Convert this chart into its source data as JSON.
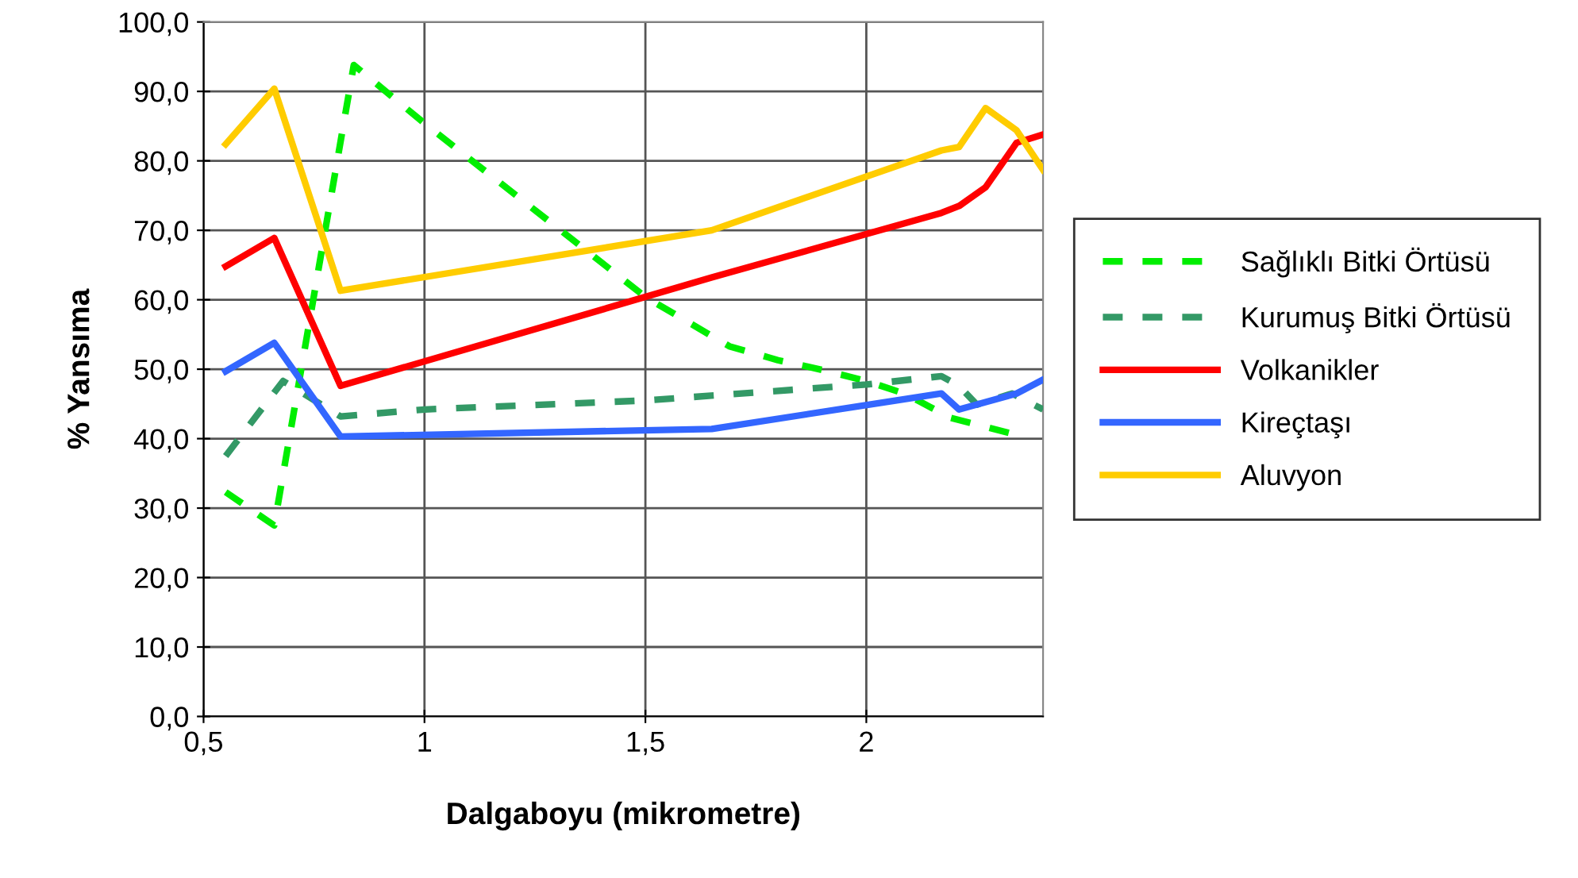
{
  "chart_data": {
    "type": "line",
    "xlabel": "Dalgaboyu (mikrometre)",
    "ylabel": "% Yansıma",
    "xlim": [
      0.5,
      2.4
    ],
    "ylim": [
      0,
      100
    ],
    "xticks": [
      {
        "value": 0.5,
        "label": "0,5"
      },
      1,
      {
        "value": 1.5,
        "label": "1,5"
      },
      2
    ],
    "yticks": [
      {
        "value": 0,
        "label": "0,0"
      },
      {
        "value": 10,
        "label": "10,0"
      },
      {
        "value": 20,
        "label": "20,0"
      },
      {
        "value": 30,
        "label": "30,0"
      },
      {
        "value": 40,
        "label": "40,0"
      },
      {
        "value": 50,
        "label": "50,0"
      },
      {
        "value": 60,
        "label": "60,0"
      },
      {
        "value": 70,
        "label": "70,0"
      },
      {
        "value": 80,
        "label": "80,0"
      },
      {
        "value": 90,
        "label": "90,0"
      },
      {
        "value": 100,
        "label": "100,0"
      }
    ],
    "grid": true,
    "legend": "right",
    "marker": "none",
    "series": [
      {
        "name": "Sağlıklı Bitki Örtüsü",
        "color": "#00ee00",
        "line_style": "dashed",
        "x": [
          0.55,
          0.66,
          0.84,
          1.0,
          1.5,
          1.69,
          1.8,
          1.9,
          2.0,
          2.09,
          2.19,
          2.33
        ],
        "values": [
          32.3,
          27.5,
          93.8,
          85.4,
          60.4,
          53.3,
          51.3,
          49.9,
          48.3,
          46.4,
          43.0,
          40.7
        ]
      },
      {
        "name": "Kurumuş Bitki Örtüsü",
        "color": "#339966",
        "line_style": "dashed",
        "x": [
          0.55,
          0.68,
          0.81,
          1.0,
          1.5,
          2.0,
          2.17,
          2.21,
          2.25,
          2.33,
          2.4
        ],
        "values": [
          37.5,
          48.3,
          43.2,
          44.2,
          45.5,
          47.8,
          49.0,
          47.6,
          44.9,
          46.5,
          44.2
        ]
      },
      {
        "name": "Volkanikler",
        "color": "#ff0000",
        "line_style": "solid",
        "x": [
          0.55,
          0.66,
          0.81,
          1.65,
          2.17,
          2.21,
          2.27,
          2.34,
          2.4
        ],
        "values": [
          64.8,
          68.9,
          47.6,
          63.2,
          72.5,
          73.5,
          76.2,
          82.6,
          83.8
        ]
      },
      {
        "name": "Kireçtaşı",
        "color": "#3366ff",
        "line_style": "solid",
        "x": [
          0.55,
          0.66,
          0.81,
          1.65,
          2.17,
          2.21,
          2.34,
          2.4
        ],
        "values": [
          49.7,
          53.8,
          40.3,
          41.4,
          46.5,
          44.2,
          46.5,
          48.5
        ]
      },
      {
        "name": "Aluvyon",
        "color": "#ffcc00",
        "line_style": "solid",
        "x": [
          0.55,
          0.66,
          0.81,
          1.65,
          2.17,
          2.21,
          2.27,
          2.34,
          2.4
        ],
        "values": [
          82.4,
          90.4,
          61.3,
          70.0,
          81.5,
          82.0,
          87.6,
          84.4,
          78.7
        ]
      }
    ]
  }
}
